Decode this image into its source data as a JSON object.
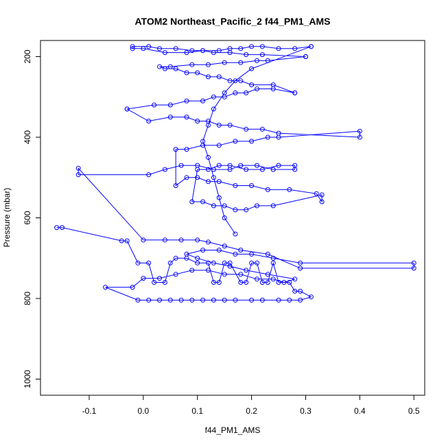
{
  "chart_data": {
    "type": "scatter",
    "title": "ATOM2 Northeast_Pacific_2 f44_PM1_AMS",
    "xlabel": "f44_PM1_AMS",
    "ylabel": "Pressure (mbar)",
    "xlim": [
      -0.19,
      0.52
    ],
    "ylim": [
      1040,
      160
    ],
    "y_reversed": true,
    "grid": false,
    "legend": "none",
    "x_ticks": [
      -0.1,
      0.0,
      0.1,
      0.2,
      0.3,
      0.4,
      0.5
    ],
    "x_tick_labels": [
      "-0.1",
      "0.0",
      "0.1",
      "0.2",
      "0.3",
      "0.4",
      "0.5"
    ],
    "y_ticks": [
      200,
      400,
      600,
      800,
      1000
    ],
    "y_tick_labels": [
      "200",
      "400",
      "600",
      "800",
      "1000"
    ],
    "series": [
      {
        "color": "#0000ff",
        "marker": "open-circle",
        "connected": true,
        "x": [
          -0.16,
          -0.15,
          -0.04,
          -0.03,
          -0.01,
          0.01,
          0.02,
          0.04,
          0.05,
          0.06,
          0.08,
          0.1,
          0.12,
          0.13,
          0.14,
          0.15,
          0.16,
          0.18,
          0.19,
          0.2,
          0.21,
          0.22,
          0.23,
          0.24,
          0.25,
          0.27,
          0.28,
          0.29,
          0.31,
          0.29,
          0.27,
          0.25,
          0.22,
          0.2,
          0.17,
          0.15,
          0.13,
          0.11,
          0.09,
          0.07,
          0.05,
          0.03,
          0.01,
          -0.01,
          -0.07,
          -0.02,
          0.0,
          0.03,
          0.06,
          0.09,
          0.12,
          0.15,
          0.18,
          0.21,
          0.24,
          0.26,
          0.28,
          0.23,
          0.19,
          0.16,
          0.13,
          0.1,
          0.08,
          0.11,
          0.14,
          0.17,
          0.2,
          0.24,
          0.29,
          0.5,
          0.5,
          0.29,
          0.23,
          0.18,
          0.15,
          0.12,
          0.1,
          0.07,
          0.04,
          0.0,
          -0.12,
          -0.12,
          0.01,
          0.04,
          0.07,
          0.1,
          0.13,
          0.16,
          0.18,
          0.21,
          0.24,
          0.28,
          0.28,
          0.25,
          0.22,
          0.19,
          0.16,
          0.14,
          0.12,
          0.1,
          0.09,
          0.11,
          0.13,
          0.15,
          0.17,
          0.19,
          0.21,
          0.24,
          0.33,
          0.33,
          0.32,
          0.27,
          0.23,
          0.2,
          0.17,
          0.14,
          0.12,
          0.1,
          0.08,
          0.06,
          0.06,
          0.08,
          0.11,
          0.14,
          0.17,
          0.2,
          0.23,
          0.25,
          0.4,
          0.4,
          0.25,
          0.22,
          0.19,
          0.16,
          0.14,
          0.12,
          0.1,
          0.08,
          0.05,
          0.01,
          -0.03,
          -0.03,
          0.02,
          0.05,
          0.08,
          0.11,
          0.13,
          0.15,
          0.17,
          0.19,
          0.21,
          0.24,
          0.28,
          0.28,
          0.24,
          0.2,
          0.18,
          0.16,
          0.14,
          0.12,
          0.1,
          0.08,
          0.06,
          0.04,
          0.03,
          0.05,
          0.09,
          0.12,
          0.15,
          0.18,
          0.21,
          0.23,
          0.3,
          0.3,
          0.22,
          0.19,
          0.16,
          0.13,
          0.11,
          0.09,
          0.06,
          0.03,
          0.01,
          -0.02,
          -0.02,
          0.0,
          0.04,
          0.08,
          0.11,
          0.14,
          0.16,
          0.18,
          0.2,
          0.22,
          0.25,
          0.28,
          0.31,
          0.31,
          0.2,
          0.17,
          0.15,
          0.13,
          0.12,
          0.11,
          0.12,
          0.13,
          0.14,
          0.15,
          0.17
        ],
        "y": [
          624,
          624,
          657,
          657,
          712,
          712,
          760,
          760,
          712,
          700,
          700,
          712,
          712,
          760,
          760,
          712,
          712,
          760,
          760,
          712,
          712,
          760,
          760,
          712,
          760,
          760,
          782,
          782,
          796,
          804,
          804,
          804,
          804,
          804,
          804,
          804,
          804,
          804,
          804,
          804,
          804,
          804,
          804,
          804,
          772,
          772,
          750,
          750,
          740,
          730,
          730,
          740,
          740,
          752,
          752,
          760,
          752,
          740,
          730,
          720,
          712,
          700,
          690,
          680,
          680,
          690,
          690,
          700,
          712,
          712,
          725,
          725,
          690,
          680,
          670,
          660,
          655,
          655,
          655,
          655,
          477,
          493,
          493,
          480,
          470,
          470,
          480,
          480,
          470,
          470,
          480,
          480,
          470,
          470,
          480,
          480,
          470,
          470,
          480,
          480,
          560,
          560,
          570,
          570,
          580,
          580,
          570,
          570,
          543,
          560,
          540,
          530,
          530,
          520,
          520,
          510,
          510,
          500,
          500,
          520,
          430,
          430,
          420,
          420,
          410,
          410,
          400,
          400,
          385,
          400,
          390,
          380,
          380,
          370,
          370,
          360,
          360,
          350,
          350,
          360,
          330,
          330,
          320,
          320,
          310,
          310,
          300,
          300,
          290,
          290,
          280,
          280,
          290,
          290,
          270,
          270,
          260,
          260,
          250,
          250,
          240,
          240,
          230,
          230,
          225,
          225,
          220,
          220,
          215,
          215,
          210,
          210,
          200,
          200,
          195,
          195,
          190,
          190,
          185,
          185,
          180,
          180,
          175,
          175,
          180,
          180,
          190,
          190,
          185,
          185,
          180,
          180,
          175,
          175,
          180,
          180,
          175,
          175,
          230,
          260,
          290,
          330,
          370,
          410,
          450,
          500,
          550,
          600,
          640
        ]
      }
    ]
  }
}
